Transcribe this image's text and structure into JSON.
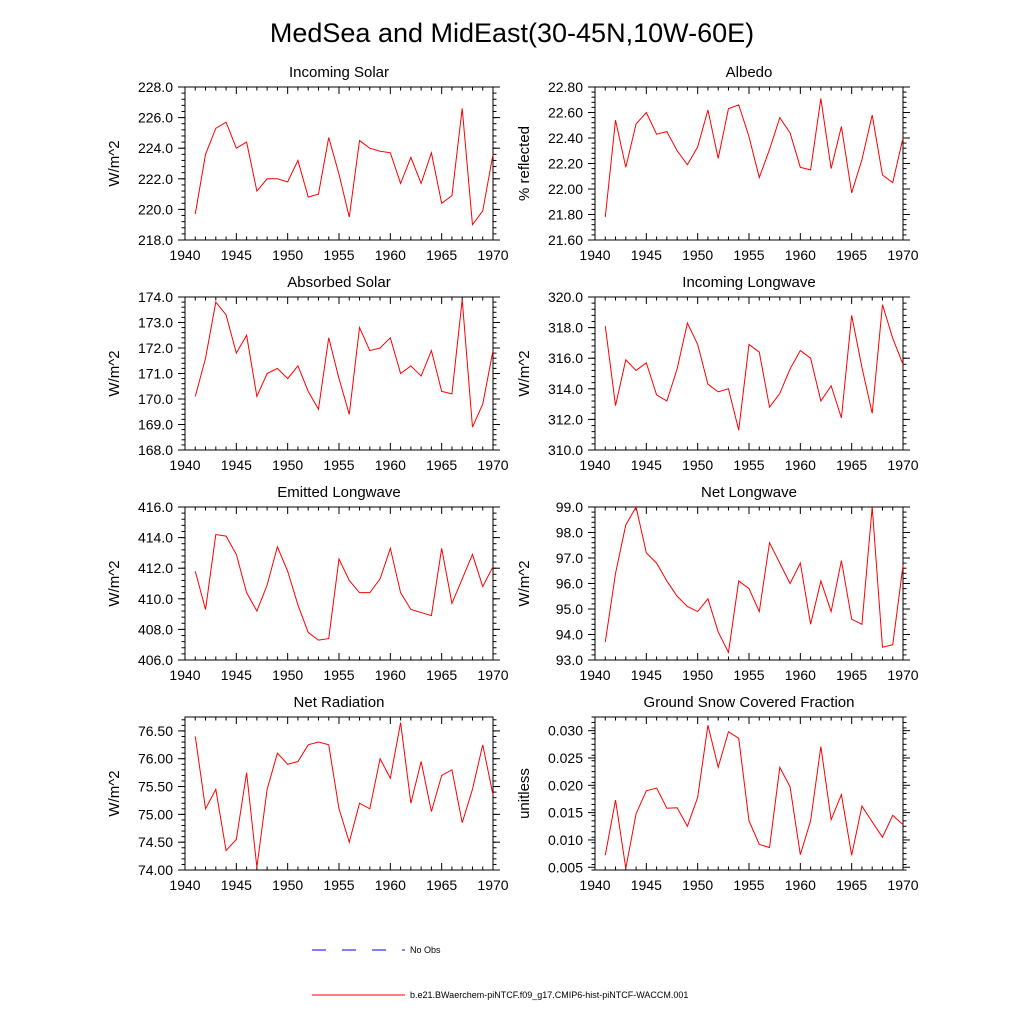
{
  "title": "MedSea and MidEast(30-45N,10W-60E)",
  "colors": {
    "model_line": "#ff0000",
    "obs_line": "#0000ff",
    "axis": "#000000"
  },
  "legend": {
    "obs_label": "No Obs",
    "model_label": "b.e21.BWaerchem-piNTCF.f09_g17.CMIP6-hist-piNTCF-WACCM.001"
  },
  "chart_data": [
    {
      "type": "line",
      "title": "Incoming Solar",
      "ylabel": "W/m^2",
      "xlim": [
        1940,
        1970
      ],
      "ylim": [
        218.0,
        228.0
      ],
      "xticks": [
        1940,
        1945,
        1950,
        1955,
        1960,
        1965,
        1970
      ],
      "yticks": [
        218.0,
        220.0,
        222.0,
        224.0,
        226.0,
        228.0
      ],
      "ytick_labels": [
        "218.0",
        "220.0",
        "222.0",
        "224.0",
        "226.0",
        "228.0"
      ],
      "x": [
        1941,
        1942,
        1943,
        1944,
        1945,
        1946,
        1947,
        1948,
        1949,
        1950,
        1951,
        1952,
        1953,
        1954,
        1955,
        1956,
        1957,
        1958,
        1959,
        1960,
        1961,
        1962,
        1963,
        1964,
        1965,
        1966,
        1967,
        1968,
        1969,
        1970
      ],
      "series": [
        {
          "values": [
            219.7,
            223.6,
            225.3,
            225.7,
            224.0,
            224.4,
            221.2,
            222.0,
            222.0,
            221.8,
            223.2,
            220.8,
            221.0,
            224.7,
            222.3,
            219.5,
            224.5,
            224.0,
            223.8,
            223.7,
            221.7,
            223.4,
            221.7,
            223.7,
            220.4,
            220.9,
            226.6,
            219.0,
            219.9,
            223.6
          ]
        }
      ]
    },
    {
      "type": "line",
      "title": "Albedo",
      "ylabel": "% reflected",
      "xlim": [
        1940,
        1970
      ],
      "ylim": [
        21.6,
        22.8
      ],
      "xticks": [
        1940,
        1945,
        1950,
        1955,
        1960,
        1965,
        1970
      ],
      "yticks": [
        21.6,
        21.8,
        22.0,
        22.2,
        22.4,
        22.6,
        22.8
      ],
      "ytick_labels": [
        "21.60",
        "21.80",
        "22.00",
        "22.20",
        "22.40",
        "22.60",
        "22.80"
      ],
      "x": [
        1941,
        1942,
        1943,
        1944,
        1945,
        1946,
        1947,
        1948,
        1949,
        1950,
        1951,
        1952,
        1953,
        1954,
        1955,
        1956,
        1957,
        1958,
        1959,
        1960,
        1961,
        1962,
        1963,
        1964,
        1965,
        1966,
        1967,
        1968,
        1969,
        1970
      ],
      "series": [
        {
          "values": [
            21.78,
            22.54,
            22.17,
            22.51,
            22.6,
            22.43,
            22.45,
            22.3,
            22.19,
            22.33,
            22.62,
            22.24,
            22.63,
            22.66,
            22.41,
            22.09,
            22.31,
            22.56,
            22.44,
            22.17,
            22.15,
            22.71,
            22.16,
            22.49,
            21.97,
            22.23,
            22.58,
            22.11,
            22.05,
            22.4
          ]
        }
      ]
    },
    {
      "type": "line",
      "title": "Absorbed Solar",
      "ylabel": "W/m^2",
      "xlim": [
        1940,
        1970
      ],
      "ylim": [
        168.0,
        174.0
      ],
      "xticks": [
        1940,
        1945,
        1950,
        1955,
        1960,
        1965,
        1970
      ],
      "yticks": [
        168.0,
        169.0,
        170.0,
        171.0,
        172.0,
        173.0,
        174.0
      ],
      "ytick_labels": [
        "168.0",
        "169.0",
        "170.0",
        "171.0",
        "172.0",
        "173.0",
        "174.0"
      ],
      "x": [
        1941,
        1942,
        1943,
        1944,
        1945,
        1946,
        1947,
        1948,
        1949,
        1950,
        1951,
        1952,
        1953,
        1954,
        1955,
        1956,
        1957,
        1958,
        1959,
        1960,
        1961,
        1962,
        1963,
        1964,
        1965,
        1966,
        1967,
        1968,
        1969,
        1970
      ],
      "series": [
        {
          "values": [
            170.1,
            171.6,
            173.8,
            173.3,
            171.8,
            172.5,
            170.1,
            171.0,
            171.2,
            170.8,
            171.3,
            170.3,
            169.6,
            172.4,
            170.8,
            169.4,
            172.8,
            171.9,
            172.0,
            172.4,
            171.0,
            171.3,
            170.9,
            171.9,
            170.3,
            170.2,
            173.9,
            168.9,
            169.8,
            171.9
          ]
        }
      ]
    },
    {
      "type": "line",
      "title": "Incoming Longwave",
      "ylabel": "W/m^2",
      "xlim": [
        1940,
        1970
      ],
      "ylim": [
        310.0,
        320.0
      ],
      "xticks": [
        1940,
        1945,
        1950,
        1955,
        1960,
        1965,
        1970
      ],
      "yticks": [
        310.0,
        312.0,
        314.0,
        316.0,
        318.0,
        320.0
      ],
      "ytick_labels": [
        "310.0",
        "312.0",
        "314.0",
        "316.0",
        "318.0",
        "320.0"
      ],
      "x": [
        1941,
        1942,
        1943,
        1944,
        1945,
        1946,
        1947,
        1948,
        1949,
        1950,
        1951,
        1952,
        1953,
        1954,
        1955,
        1956,
        1957,
        1958,
        1959,
        1960,
        1961,
        1962,
        1963,
        1964,
        1965,
        1966,
        1967,
        1968,
        1969,
        1970
      ],
      "series": [
        {
          "values": [
            318.1,
            312.9,
            315.9,
            315.2,
            315.7,
            313.6,
            313.2,
            315.3,
            318.3,
            316.9,
            314.3,
            313.8,
            314.0,
            311.3,
            316.9,
            316.4,
            312.8,
            313.7,
            315.3,
            316.5,
            316.0,
            313.2,
            314.2,
            312.1,
            318.8,
            315.4,
            312.4,
            319.5,
            317.3,
            315.6
          ]
        }
      ]
    },
    {
      "type": "line",
      "title": "Emitted Longwave",
      "ylabel": "W/m^2",
      "xlim": [
        1940,
        1970
      ],
      "ylim": [
        406.0,
        416.0
      ],
      "xticks": [
        1940,
        1945,
        1950,
        1955,
        1960,
        1965,
        1970
      ],
      "yticks": [
        406.0,
        408.0,
        410.0,
        412.0,
        414.0,
        416.0
      ],
      "ytick_labels": [
        "406.0",
        "408.0",
        "410.0",
        "412.0",
        "414.0",
        "416.0"
      ],
      "x": [
        1941,
        1942,
        1943,
        1944,
        1945,
        1946,
        1947,
        1948,
        1949,
        1950,
        1951,
        1952,
        1953,
        1954,
        1955,
        1956,
        1957,
        1958,
        1959,
        1960,
        1961,
        1962,
        1963,
        1964,
        1965,
        1966,
        1967,
        1968,
        1969,
        1970
      ],
      "series": [
        {
          "values": [
            411.8,
            409.3,
            414.2,
            414.1,
            412.9,
            410.4,
            409.2,
            410.9,
            413.4,
            411.8,
            409.6,
            407.8,
            407.3,
            407.4,
            412.6,
            411.2,
            410.4,
            410.4,
            411.3,
            413.3,
            410.4,
            409.3,
            409.1,
            408.9,
            413.3,
            409.7,
            411.3,
            412.9,
            410.8,
            412.1
          ]
        }
      ]
    },
    {
      "type": "line",
      "title": "Net Longwave",
      "ylabel": "W/m^2",
      "xlim": [
        1940,
        1970
      ],
      "ylim": [
        93.0,
        99.0
      ],
      "xticks": [
        1940,
        1945,
        1950,
        1955,
        1960,
        1965,
        1970
      ],
      "yticks": [
        93.0,
        94.0,
        95.0,
        96.0,
        97.0,
        98.0,
        99.0
      ],
      "ytick_labels": [
        "93.0",
        "94.0",
        "95.0",
        "96.0",
        "97.0",
        "98.0",
        "99.0"
      ],
      "x": [
        1941,
        1942,
        1943,
        1944,
        1945,
        1946,
        1947,
        1948,
        1949,
        1950,
        1951,
        1952,
        1953,
        1954,
        1955,
        1956,
        1957,
        1958,
        1959,
        1960,
        1961,
        1962,
        1963,
        1964,
        1965,
        1966,
        1967,
        1968,
        1969,
        1970
      ],
      "series": [
        {
          "values": [
            93.7,
            96.4,
            98.3,
            99.0,
            97.2,
            96.8,
            96.1,
            95.5,
            95.1,
            94.9,
            95.4,
            94.1,
            93.3,
            96.1,
            95.8,
            94.9,
            97.6,
            96.8,
            96.0,
            96.8,
            94.4,
            96.1,
            94.9,
            96.9,
            94.6,
            94.4,
            99.0,
            93.5,
            93.6,
            96.7
          ]
        }
      ]
    },
    {
      "type": "line",
      "title": "Net Radiation",
      "ylabel": "W/m^2",
      "xlim": [
        1940,
        1970
      ],
      "ylim": [
        74.0,
        76.75
      ],
      "xticks": [
        1940,
        1945,
        1950,
        1955,
        1960,
        1965,
        1970
      ],
      "yticks": [
        74.0,
        74.5,
        75.0,
        75.5,
        76.0,
        76.5
      ],
      "ytick_labels": [
        "74.00",
        "74.50",
        "75.00",
        "75.50",
        "76.00",
        "76.50"
      ],
      "x": [
        1941,
        1942,
        1943,
        1944,
        1945,
        1946,
        1947,
        1948,
        1949,
        1950,
        1951,
        1952,
        1953,
        1954,
        1955,
        1956,
        1957,
        1958,
        1959,
        1960,
        1961,
        1962,
        1963,
        1964,
        1965,
        1966,
        1967,
        1968,
        1969,
        1970
      ],
      "series": [
        {
          "values": [
            76.4,
            75.1,
            75.45,
            74.35,
            74.55,
            75.75,
            74.05,
            75.45,
            76.1,
            75.9,
            75.95,
            76.25,
            76.3,
            76.25,
            75.1,
            74.5,
            75.2,
            75.1,
            76.0,
            75.65,
            76.65,
            75.2,
            75.95,
            75.05,
            75.7,
            75.8,
            74.85,
            75.45,
            76.25,
            75.35
          ]
        }
      ]
    },
    {
      "type": "line",
      "title": "Ground Snow Covered Fraction",
      "ylabel": "unitless",
      "xlim": [
        1940,
        1970
      ],
      "ylim": [
        0.0045,
        0.0325
      ],
      "xticks": [
        1940,
        1945,
        1950,
        1955,
        1960,
        1965,
        1970
      ],
      "yticks": [
        0.005,
        0.01,
        0.015,
        0.02,
        0.025,
        0.03
      ],
      "ytick_labels": [
        "0.005",
        "0.010",
        "0.015",
        "0.020",
        "0.025",
        "0.030"
      ],
      "x": [
        1941,
        1942,
        1943,
        1944,
        1945,
        1946,
        1947,
        1948,
        1949,
        1950,
        1951,
        1952,
        1953,
        1954,
        1955,
        1956,
        1957,
        1958,
        1959,
        1960,
        1961,
        1962,
        1963,
        1964,
        1965,
        1966,
        1967,
        1968,
        1969,
        1970
      ],
      "series": [
        {
          "values": [
            0.0072,
            0.0173,
            0.0048,
            0.0148,
            0.019,
            0.0195,
            0.0158,
            0.0159,
            0.0125,
            0.0178,
            0.031,
            0.0233,
            0.0298,
            0.0286,
            0.0135,
            0.0092,
            0.0086,
            0.0233,
            0.0197,
            0.0073,
            0.0135,
            0.0271,
            0.0137,
            0.0183,
            0.0072,
            0.0162,
            0.0133,
            0.0105,
            0.0145,
            0.0128
          ]
        }
      ]
    }
  ]
}
